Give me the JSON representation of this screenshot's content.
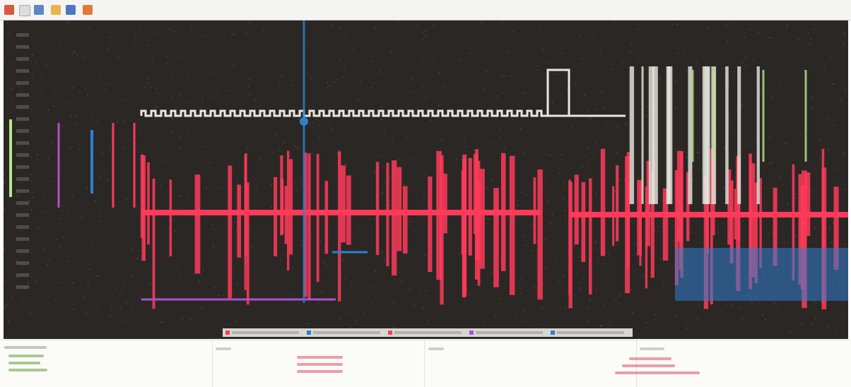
{
  "plot": {
    "background": "#2b2725",
    "traces": [
      {
        "color": "#ff3a5a",
        "kind": "spikes"
      },
      {
        "color": "#e8e8e0",
        "kind": "steps"
      },
      {
        "color": "#2f7fd0",
        "kind": "blocks"
      },
      {
        "color": "#b8e68a",
        "kind": "bars"
      }
    ],
    "legend_colors": [
      "#ff3a5a",
      "#2f7fd0",
      "#ff3a5a",
      "#b04fd0",
      "#2f7fd0"
    ]
  }
}
